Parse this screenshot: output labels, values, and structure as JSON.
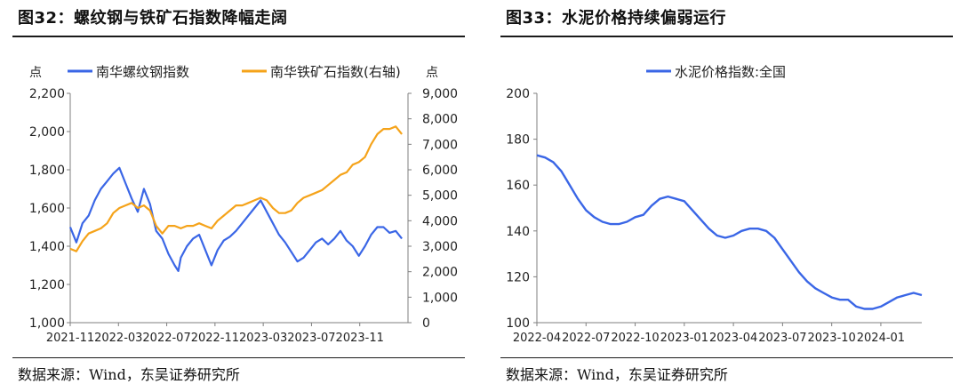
{
  "colors": {
    "blue": "#3a66e6",
    "orange": "#f5a31a",
    "axis": "#7f7f7f"
  },
  "left": {
    "title": "图32：螺纹钢与铁矿石指数降幅走阔",
    "source": "数据来源：Wind，东吴证券研究所",
    "y_unit_left": "点",
    "y_unit_right": "点"
  },
  "right": {
    "title": "图33：水泥价格持续偏弱运行",
    "source": "数据来源：Wind，东吴证券研究所"
  },
  "chart_data": [
    {
      "type": "line",
      "legend": "top",
      "grid": false,
      "x_ticks": [
        "2021-11",
        "2022-03",
        "2022-07",
        "2022-11",
        "2023-03",
        "2023-07",
        "2023-11"
      ],
      "x_range": [
        0,
        27.5
      ],
      "y_left": {
        "range": [
          1000,
          2200
        ],
        "ticks": [
          "1,000",
          "1,200",
          "1,400",
          "1,600",
          "1,800",
          "2,000",
          "2,200"
        ]
      },
      "y_right": {
        "range": [
          0,
          9000
        ],
        "ticks": [
          "0",
          "1,000",
          "2,000",
          "3,000",
          "4,000",
          "5,000",
          "6,000",
          "7,000",
          "8,000",
          "9,000"
        ]
      },
      "series": [
        {
          "name": "南华螺纹钢指数",
          "axis": "left",
          "x": [
            0,
            0.5,
            1,
            1.5,
            2,
            2.5,
            3,
            3.5,
            4,
            4.5,
            5,
            5.5,
            6,
            6.5,
            7,
            7.5,
            8,
            8.5,
            8.8,
            9,
            9.5,
            10,
            10.5,
            11,
            11.5,
            12,
            12.5,
            13,
            13.5,
            14,
            14.5,
            15,
            15.5,
            16,
            16.5,
            17,
            17.5,
            18,
            18.5,
            19,
            19.5,
            20,
            20.5,
            21,
            21.5,
            22,
            22.5,
            23,
            23.5,
            24,
            24.5,
            25,
            25.5,
            26,
            26.5,
            27
          ],
          "values": [
            1500,
            1420,
            1520,
            1560,
            1640,
            1700,
            1740,
            1780,
            1810,
            1730,
            1650,
            1580,
            1700,
            1620,
            1480,
            1440,
            1360,
            1300,
            1270,
            1340,
            1400,
            1440,
            1460,
            1380,
            1300,
            1380,
            1430,
            1450,
            1480,
            1520,
            1560,
            1600,
            1640,
            1580,
            1520,
            1460,
            1420,
            1370,
            1320,
            1340,
            1380,
            1420,
            1440,
            1410,
            1440,
            1480,
            1430,
            1400,
            1350,
            1400,
            1460,
            1500,
            1500,
            1470,
            1480,
            1440
          ]
        },
        {
          "name": "南华铁矿石指数(右轴)",
          "axis": "right",
          "x": [
            0,
            0.5,
            1,
            1.5,
            2,
            2.5,
            3,
            3.5,
            4,
            4.5,
            5,
            5.5,
            6,
            6.5,
            7,
            7.5,
            8,
            8.5,
            9,
            9.5,
            10,
            10.5,
            11,
            11.5,
            12,
            12.5,
            13,
            13.5,
            14,
            14.5,
            15,
            15.5,
            16,
            16.5,
            17,
            17.5,
            18,
            18.5,
            19,
            19.5,
            20,
            20.5,
            21,
            21.5,
            22,
            22.5,
            23,
            23.5,
            24,
            24.5,
            25,
            25.5,
            26,
            26.5,
            27
          ],
          "values": [
            2900,
            2800,
            3200,
            3500,
            3600,
            3700,
            3900,
            4300,
            4500,
            4600,
            4700,
            4500,
            4600,
            4400,
            3800,
            3500,
            3800,
            3800,
            3700,
            3800,
            3800,
            3900,
            3800,
            3700,
            4000,
            4200,
            4400,
            4600,
            4600,
            4700,
            4800,
            4900,
            4800,
            4500,
            4300,
            4300,
            4400,
            4700,
            4900,
            5000,
            5100,
            5200,
            5400,
            5600,
            5800,
            5900,
            6200,
            6300,
            6500,
            7000,
            7400,
            7600,
            7600,
            7700,
            7400
          ]
        }
      ]
    },
    {
      "type": "line",
      "legend": "top",
      "grid": false,
      "x_ticks": [
        "2022-04",
        "2022-07",
        "2022-10",
        "2023-01",
        "2023-04",
        "2023-07",
        "2023-10",
        "2024-01"
      ],
      "x_range": [
        0,
        23.5
      ],
      "y_range": [
        100,
        200
      ],
      "y_ticks": [
        "100",
        "120",
        "140",
        "160",
        "180",
        "200"
      ],
      "series": [
        {
          "name": "水泥价格指数:全国",
          "x": [
            0,
            0.5,
            1,
            1.5,
            2,
            2.5,
            3,
            3.5,
            4,
            4.5,
            5,
            5.5,
            6,
            6.5,
            7,
            7.5,
            8,
            8.5,
            9,
            9.5,
            10,
            10.5,
            11,
            11.5,
            12,
            12.5,
            13,
            13.5,
            14,
            14.5,
            15,
            15.5,
            16,
            16.5,
            17,
            17.5,
            18,
            18.5,
            19,
            19.5,
            20,
            20.5,
            21,
            21.5,
            22,
            22.5,
            23,
            23.5
          ],
          "values": [
            173,
            172,
            170,
            166,
            160,
            154,
            149,
            146,
            144,
            143,
            143,
            144,
            146,
            147,
            151,
            154,
            155,
            154,
            153,
            149,
            145,
            141,
            138,
            137,
            138,
            140,
            141,
            141,
            140,
            137,
            132,
            127,
            122,
            118,
            115,
            113,
            111,
            110,
            110,
            107,
            106,
            106,
            107,
            109,
            111,
            112,
            113,
            112
          ]
        }
      ]
    }
  ]
}
